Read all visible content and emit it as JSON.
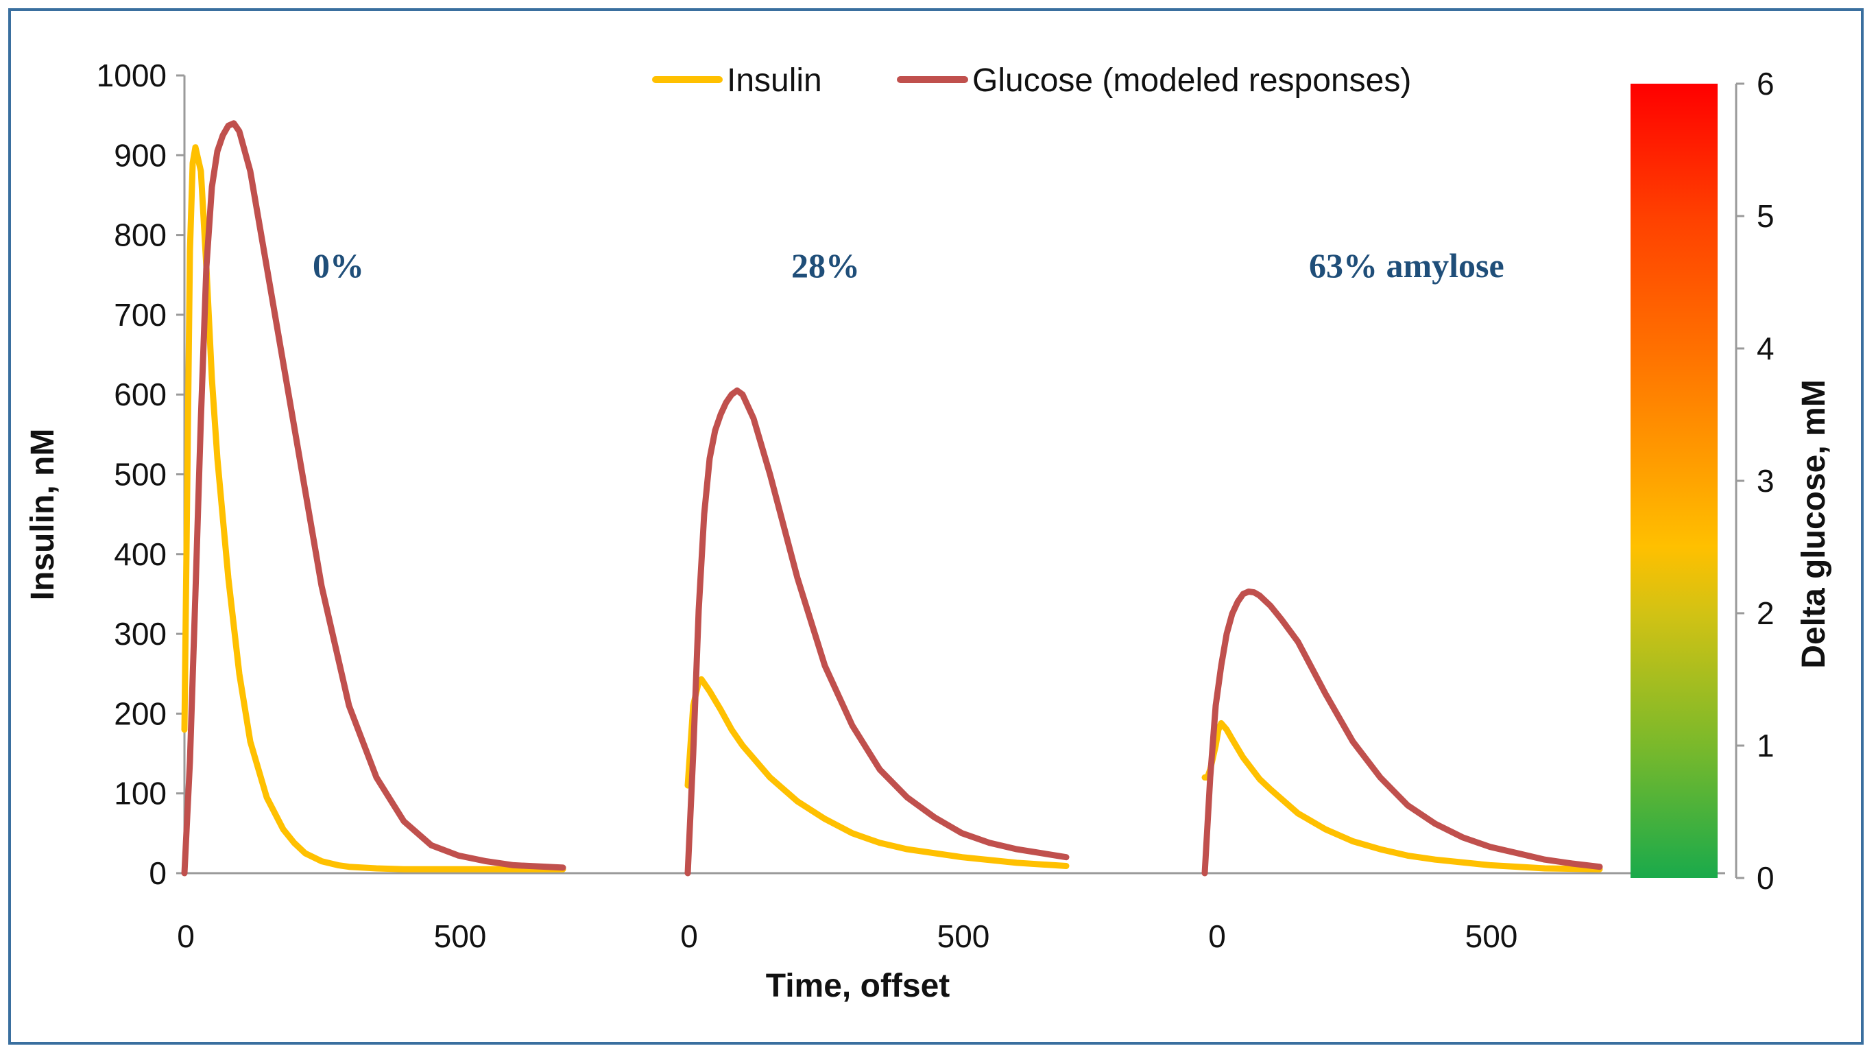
{
  "chart_data": {
    "type": "line",
    "title": "",
    "xlabel": "Time, offset",
    "ylabel": "Insulin, nM",
    "ylim": [
      0,
      1000
    ],
    "y_ticks": [
      0,
      100,
      200,
      300,
      400,
      500,
      600,
      700,
      800,
      900,
      1000
    ],
    "x_ticks": [
      0,
      500
    ],
    "xlim_per_panel": [
      0,
      700
    ],
    "legend": [
      {
        "name": "Insulin",
        "color": "#ffc000"
      },
      {
        "name": "Glucose (modeled responses)",
        "color": "#c0504d"
      }
    ],
    "legend_position": "top",
    "panels": [
      {
        "label": "0%",
        "series": [
          {
            "name": "Insulin",
            "x": [
              0,
              5,
              10,
              15,
              20,
              30,
              40,
              50,
              60,
              80,
              100,
              120,
              150,
              180,
              200,
              220,
              250,
              280,
              300,
              350,
              400,
              500,
              600,
              690
            ],
            "y": [
              180,
              480,
              780,
              890,
              910,
              880,
              760,
              620,
              520,
              370,
              250,
              165,
              95,
              55,
              38,
              25,
              15,
              10,
              8,
              6,
              5,
              5,
              5,
              5
            ]
          },
          {
            "name": "Glucose (modeled responses)",
            "x": [
              0,
              10,
              20,
              30,
              40,
              50,
              60,
              70,
              80,
              90,
              100,
              120,
              150,
              200,
              250,
              300,
              350,
              400,
              450,
              500,
              550,
              600,
              690
            ],
            "y": [
              0,
              140,
              350,
              570,
              760,
              860,
              905,
              925,
              937,
              940,
              930,
              880,
              760,
              560,
              360,
              210,
              120,
              65,
              35,
              22,
              15,
              10,
              7
            ]
          }
        ]
      },
      {
        "label": "28%",
        "series": [
          {
            "name": "Insulin",
            "x": [
              0,
              5,
              10,
              20,
              25,
              30,
              40,
              60,
              80,
              100,
              150,
              200,
              250,
              300,
              350,
              400,
              500,
              600,
              690
            ],
            "y": [
              110,
              160,
              210,
              240,
              243,
              238,
              228,
              205,
              180,
              160,
              120,
              90,
              68,
              50,
              38,
              30,
              20,
              13,
              9
            ]
          },
          {
            "name": "Glucose (modeled responses)",
            "x": [
              0,
              10,
              20,
              30,
              40,
              50,
              60,
              70,
              80,
              90,
              100,
              120,
              150,
              200,
              250,
              300,
              350,
              400,
              450,
              500,
              550,
              600,
              690
            ],
            "y": [
              0,
              150,
              330,
              450,
              520,
              555,
              575,
              590,
              600,
              605,
              600,
              570,
              500,
              370,
              260,
              185,
              130,
              95,
              70,
              50,
              38,
              30,
              20
            ]
          }
        ]
      },
      {
        "label": "63% amylose",
        "series": [
          {
            "name": "Insulin",
            "x": [
              -20,
              -15,
              -10,
              0,
              5,
              10,
              20,
              30,
              50,
              80,
              100,
              150,
              200,
              250,
              300,
              350,
              400,
              500,
              600,
              700
            ],
            "y": [
              120,
              120,
              130,
              160,
              180,
              188,
              180,
              168,
              145,
              118,
              105,
              75,
              55,
              40,
              30,
              22,
              17,
              10,
              6,
              5
            ]
          },
          {
            "name": "Glucose (modeled responses)",
            "x": [
              -20,
              -10,
              0,
              10,
              20,
              30,
              40,
              50,
              60,
              70,
              80,
              100,
              120,
              150,
              200,
              250,
              300,
              350,
              400,
              450,
              500,
              550,
              600,
              650,
              700
            ],
            "y": [
              0,
              120,
              210,
              260,
              300,
              325,
              340,
              350,
              353,
              352,
              348,
              335,
              318,
              290,
              225,
              165,
              120,
              85,
              62,
              45,
              33,
              25,
              17,
              12,
              8
            ]
          }
        ]
      }
    ],
    "colorbar": {
      "ylabel": "Delta glucose, mM",
      "ylim": [
        0,
        6
      ],
      "ticks": [
        0,
        1,
        2,
        3,
        4,
        5,
        6
      ],
      "gradient_stops": [
        {
          "value": 0,
          "color": "#1aaa4b"
        },
        {
          "value": 1,
          "color": "#7ab92b"
        },
        {
          "value": 2,
          "color": "#d2c214"
        },
        {
          "value": 2.5,
          "color": "#ffc000"
        },
        {
          "value": 3,
          "color": "#ffa400"
        },
        {
          "value": 4,
          "color": "#ff7000"
        },
        {
          "value": 5,
          "color": "#ff4000"
        },
        {
          "value": 6,
          "color": "#ff0000"
        }
      ]
    }
  }
}
